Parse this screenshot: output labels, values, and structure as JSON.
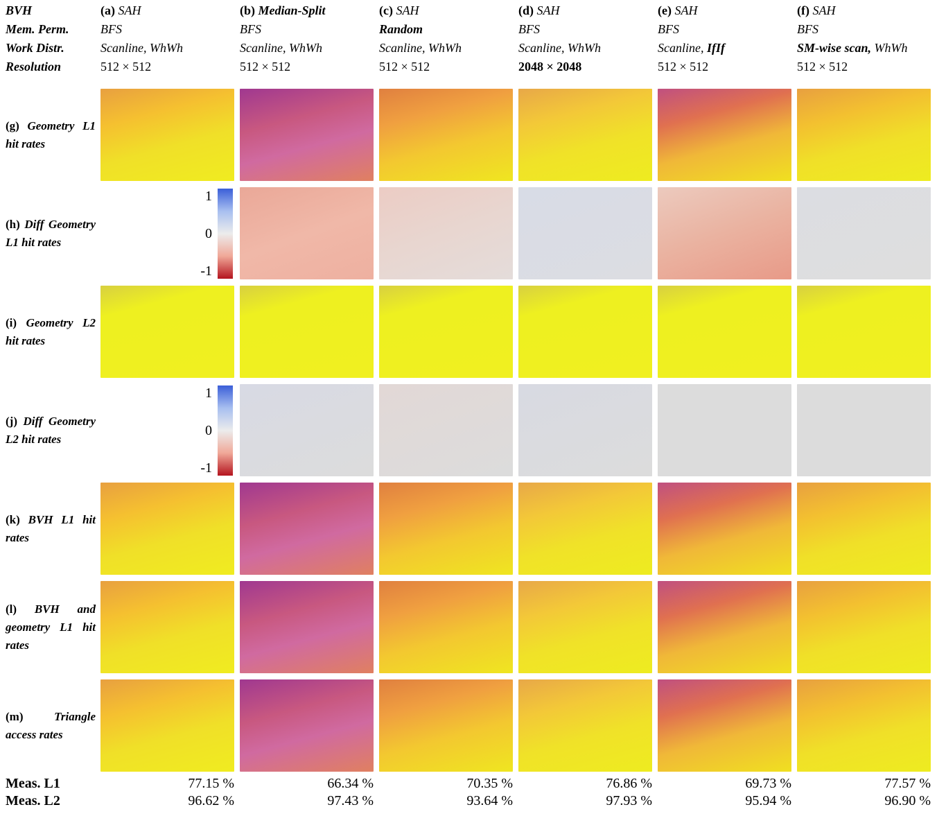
{
  "header_labels": [
    "BVH",
    "Mem. Perm.",
    "Work Distr.",
    "Resolution"
  ],
  "columns": [
    {
      "id": "(a)",
      "lines": [
        [
          {
            "text": "SAH"
          }
        ],
        [
          {
            "text": "BFS"
          }
        ],
        [
          {
            "text": "Scanline, WhWh"
          }
        ],
        [
          {
            "text": "512 × 512"
          }
        ]
      ]
    },
    {
      "id": "(b)",
      "lines": [
        [
          {
            "text": "Median-Split",
            "bold": true
          }
        ],
        [
          {
            "text": "BFS"
          }
        ],
        [
          {
            "text": "Scanline, WhWh"
          }
        ],
        [
          {
            "text": "512 × 512"
          }
        ]
      ]
    },
    {
      "id": "(c)",
      "lines": [
        [
          {
            "text": "SAH"
          }
        ],
        [
          {
            "text": "Random",
            "bold": true
          }
        ],
        [
          {
            "text": "Scanline, WhWh"
          }
        ],
        [
          {
            "text": "512 × 512"
          }
        ]
      ]
    },
    {
      "id": "(d)",
      "lines": [
        [
          {
            "text": "SAH"
          }
        ],
        [
          {
            "text": "BFS"
          }
        ],
        [
          {
            "text": "Scanline, WhWh"
          }
        ],
        [
          {
            "text": "2048 × 2048",
            "bold": true
          }
        ]
      ]
    },
    {
      "id": "(e)",
      "lines": [
        [
          {
            "text": "SAH"
          }
        ],
        [
          {
            "text": "BFS"
          }
        ],
        [
          {
            "text": "Scanline,"
          },
          {
            "text": "IfIf",
            "bold": true
          }
        ],
        [
          {
            "text": "512 × 512"
          }
        ]
      ]
    },
    {
      "id": "(f)",
      "lines": [
        [
          {
            "text": "SAH"
          }
        ],
        [
          {
            "text": "BFS"
          }
        ],
        [
          {
            "text": "SM-wise scan,",
            "bold": true
          },
          {
            "text": "WhWh"
          }
        ],
        [
          {
            "text": "512 × 512"
          }
        ]
      ]
    }
  ],
  "rows": [
    {
      "id": "(g)",
      "label": "Geometry L1 hit rates",
      "kind": "heat"
    },
    {
      "id": "(h)",
      "label": "Diff Geometry L1 hit rates",
      "kind": "diff"
    },
    {
      "id": "(i)",
      "label": "Geometry L2 hit rates",
      "kind": "heat"
    },
    {
      "id": "(j)",
      "label": "Diff Geometry L2 hit rates",
      "kind": "diff"
    },
    {
      "id": "(k)",
      "label": "BVH L1 hit rates",
      "kind": "heat"
    },
    {
      "id": "(l)",
      "label": "BVH and geometry L1 hit rates",
      "kind": "heat"
    },
    {
      "id": "(m)",
      "label": "Triangle access rates",
      "kind": "heat"
    }
  ],
  "colorbar_ticks": [
    1,
    0,
    -1
  ],
  "measurements": [
    {
      "label": "Meas. L1",
      "values": [
        "77.15 %",
        "66.34 %",
        "70.35 %",
        "76.86 %",
        "69.73 %",
        "77.57 %"
      ]
    },
    {
      "label": "Meas. L2",
      "values": [
        "96.62 %",
        "97.43 %",
        "93.64 %",
        "97.93 %",
        "95.94 %",
        "96.90 %"
      ]
    }
  ]
}
